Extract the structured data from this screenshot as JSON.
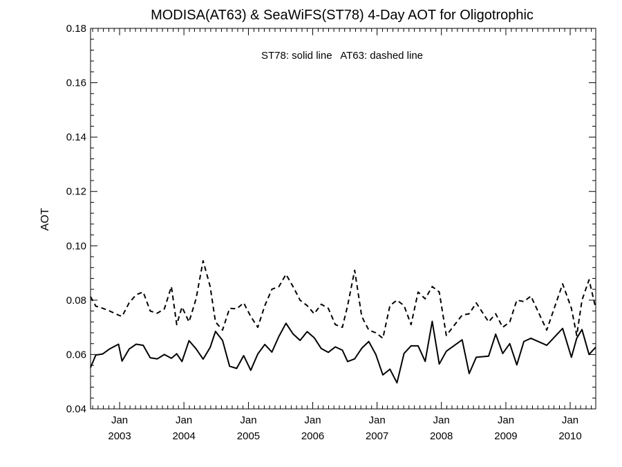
{
  "chart_data": {
    "type": "line",
    "title": "MODISA(AT63) & SeaWiFS(ST78) 4-Day AOT for Oligotrophic",
    "xlabel": "",
    "ylabel": "AOT",
    "annotation": "ST78: solid line   AT63: dashed line",
    "ylim": [
      0.04,
      0.18
    ],
    "y_ticks": [
      "0.04",
      "0.06",
      "0.08",
      "0.10",
      "0.12",
      "0.14",
      "0.16",
      "0.18"
    ],
    "xlim": [
      "2002-07-20",
      "2010-05-26"
    ],
    "x_ticks": [
      {
        "date": "2003-01-01",
        "month": "Jan",
        "year": "2003"
      },
      {
        "date": "2004-01-01",
        "month": "Jan",
        "year": "2004"
      },
      {
        "date": "2005-01-01",
        "month": "Jan",
        "year": "2005"
      },
      {
        "date": "2006-01-01",
        "month": "Jan",
        "year": "2006"
      },
      {
        "date": "2007-01-01",
        "month": "Jan",
        "year": "2007"
      },
      {
        "date": "2008-01-01",
        "month": "Jan",
        "year": "2008"
      },
      {
        "date": "2009-01-01",
        "month": "Jan",
        "year": "2009"
      },
      {
        "date": "2010-01-01",
        "month": "Jan",
        "year": "2010"
      }
    ],
    "grid": false,
    "legend": "none",
    "series": [
      {
        "name": "ST78",
        "style": "solid",
        "color": "#000000",
        "x": [
          "2002-07-20",
          "2002-08-19",
          "2002-09-27",
          "2002-11-06",
          "2002-12-26",
          "2003-01-15",
          "2003-02-24",
          "2003-04-05",
          "2003-05-15",
          "2003-06-24",
          "2003-08-03",
          "2003-09-12",
          "2003-10-22",
          "2003-11-21",
          "2003-12-21",
          "2004-01-30",
          "2004-03-10",
          "2004-04-19",
          "2004-05-29",
          "2004-06-28",
          "2004-08-07",
          "2004-09-16",
          "2004-10-26",
          "2004-12-05",
          "2005-01-14",
          "2005-02-23",
          "2005-04-04",
          "2005-05-14",
          "2005-06-23",
          "2005-08-02",
          "2005-09-11",
          "2005-10-21",
          "2005-11-30",
          "2006-01-09",
          "2006-02-18",
          "2006-03-30",
          "2006-05-09",
          "2006-06-18",
          "2006-07-18",
          "2006-08-27",
          "2006-10-06",
          "2006-11-15",
          "2006-12-25",
          "2007-02-03",
          "2007-03-15",
          "2007-04-24",
          "2007-06-03",
          "2007-07-13",
          "2007-08-22",
          "2007-10-01",
          "2007-11-10",
          "2007-12-20",
          "2008-01-29",
          "2008-04-28",
          "2008-06-07",
          "2008-07-17",
          "2008-09-25",
          "2008-11-04",
          "2008-12-14",
          "2009-01-23",
          "2009-03-04",
          "2009-04-13",
          "2009-05-23",
          "2009-08-21",
          "2009-11-19",
          "2010-01-08",
          "2010-02-07",
          "2010-03-09",
          "2010-04-18",
          "2010-05-26"
        ],
        "values": [
          0.0552,
          0.0598,
          0.0602,
          0.0621,
          0.0638,
          0.0576,
          0.062,
          0.0638,
          0.0634,
          0.0588,
          0.0584,
          0.06,
          0.0586,
          0.0603,
          0.0574,
          0.0651,
          0.0621,
          0.0583,
          0.0626,
          0.0685,
          0.0652,
          0.0557,
          0.0549,
          0.0596,
          0.0542,
          0.0602,
          0.0637,
          0.0609,
          0.0667,
          0.0715,
          0.0676,
          0.0652,
          0.0684,
          0.0662,
          0.0622,
          0.0608,
          0.0628,
          0.0616,
          0.0574,
          0.0584,
          0.0623,
          0.0648,
          0.06,
          0.0525,
          0.0546,
          0.0496,
          0.0604,
          0.0632,
          0.0632,
          0.0575,
          0.0722,
          0.0565,
          0.0612,
          0.0654,
          0.053,
          0.059,
          0.0594,
          0.0675,
          0.0604,
          0.064,
          0.0562,
          0.0648,
          0.066,
          0.0634,
          0.0696,
          0.059,
          0.066,
          0.0692,
          0.06,
          0.0627
        ]
      },
      {
        "name": "AT63",
        "style": "dashed",
        "color": "#000000",
        "x": [
          "2002-07-20",
          "2002-08-19",
          "2002-09-27",
          "2002-11-06",
          "2002-12-26",
          "2003-01-15",
          "2003-02-24",
          "2003-04-05",
          "2003-05-15",
          "2003-06-24",
          "2003-08-03",
          "2003-09-12",
          "2003-10-22",
          "2003-11-21",
          "2003-12-21",
          "2004-01-30",
          "2004-03-10",
          "2004-04-19",
          "2004-05-29",
          "2004-06-28",
          "2004-08-07",
          "2004-09-16",
          "2004-10-26",
          "2004-12-05",
          "2005-01-14",
          "2005-02-23",
          "2005-04-04",
          "2005-05-14",
          "2005-06-23",
          "2005-08-02",
          "2005-09-11",
          "2005-10-21",
          "2005-11-30",
          "2006-01-09",
          "2006-02-18",
          "2006-03-30",
          "2006-05-09",
          "2006-06-18",
          "2006-07-18",
          "2006-08-27",
          "2006-10-06",
          "2006-11-15",
          "2006-12-25",
          "2007-02-03",
          "2007-03-15",
          "2007-04-24",
          "2007-06-03",
          "2007-07-13",
          "2007-08-22",
          "2007-10-01",
          "2007-11-10",
          "2007-12-20",
          "2008-01-29",
          "2008-04-28",
          "2008-06-07",
          "2008-07-17",
          "2008-09-25",
          "2008-11-04",
          "2008-12-14",
          "2009-01-23",
          "2009-03-04",
          "2009-04-13",
          "2009-05-23",
          "2009-08-21",
          "2009-11-19",
          "2010-01-08",
          "2010-02-07",
          "2010-03-09",
          "2010-04-18",
          "2010-05-26"
        ],
        "values": [
          0.0813,
          0.0778,
          0.077,
          0.076,
          0.0745,
          0.074,
          0.079,
          0.082,
          0.083,
          0.076,
          0.0752,
          0.0768,
          0.085,
          0.071,
          0.0775,
          0.072,
          0.0805,
          0.0945,
          0.085,
          0.072,
          0.069,
          0.077,
          0.0768,
          0.079,
          0.074,
          0.07,
          0.078,
          0.084,
          0.085,
          0.0895,
          0.085,
          0.08,
          0.078,
          0.075,
          0.0785,
          0.077,
          0.071,
          0.07,
          0.078,
          0.091,
          0.074,
          0.069,
          0.068,
          0.066,
          0.078,
          0.08,
          0.078,
          0.071,
          0.083,
          0.0805,
          0.085,
          0.083,
          0.067,
          0.0745,
          0.075,
          0.079,
          0.072,
          0.075,
          0.07,
          0.072,
          0.08,
          0.0795,
          0.0815,
          0.069,
          0.086,
          0.077,
          0.067,
          0.08,
          0.0875,
          0.077
        ]
      }
    ]
  }
}
